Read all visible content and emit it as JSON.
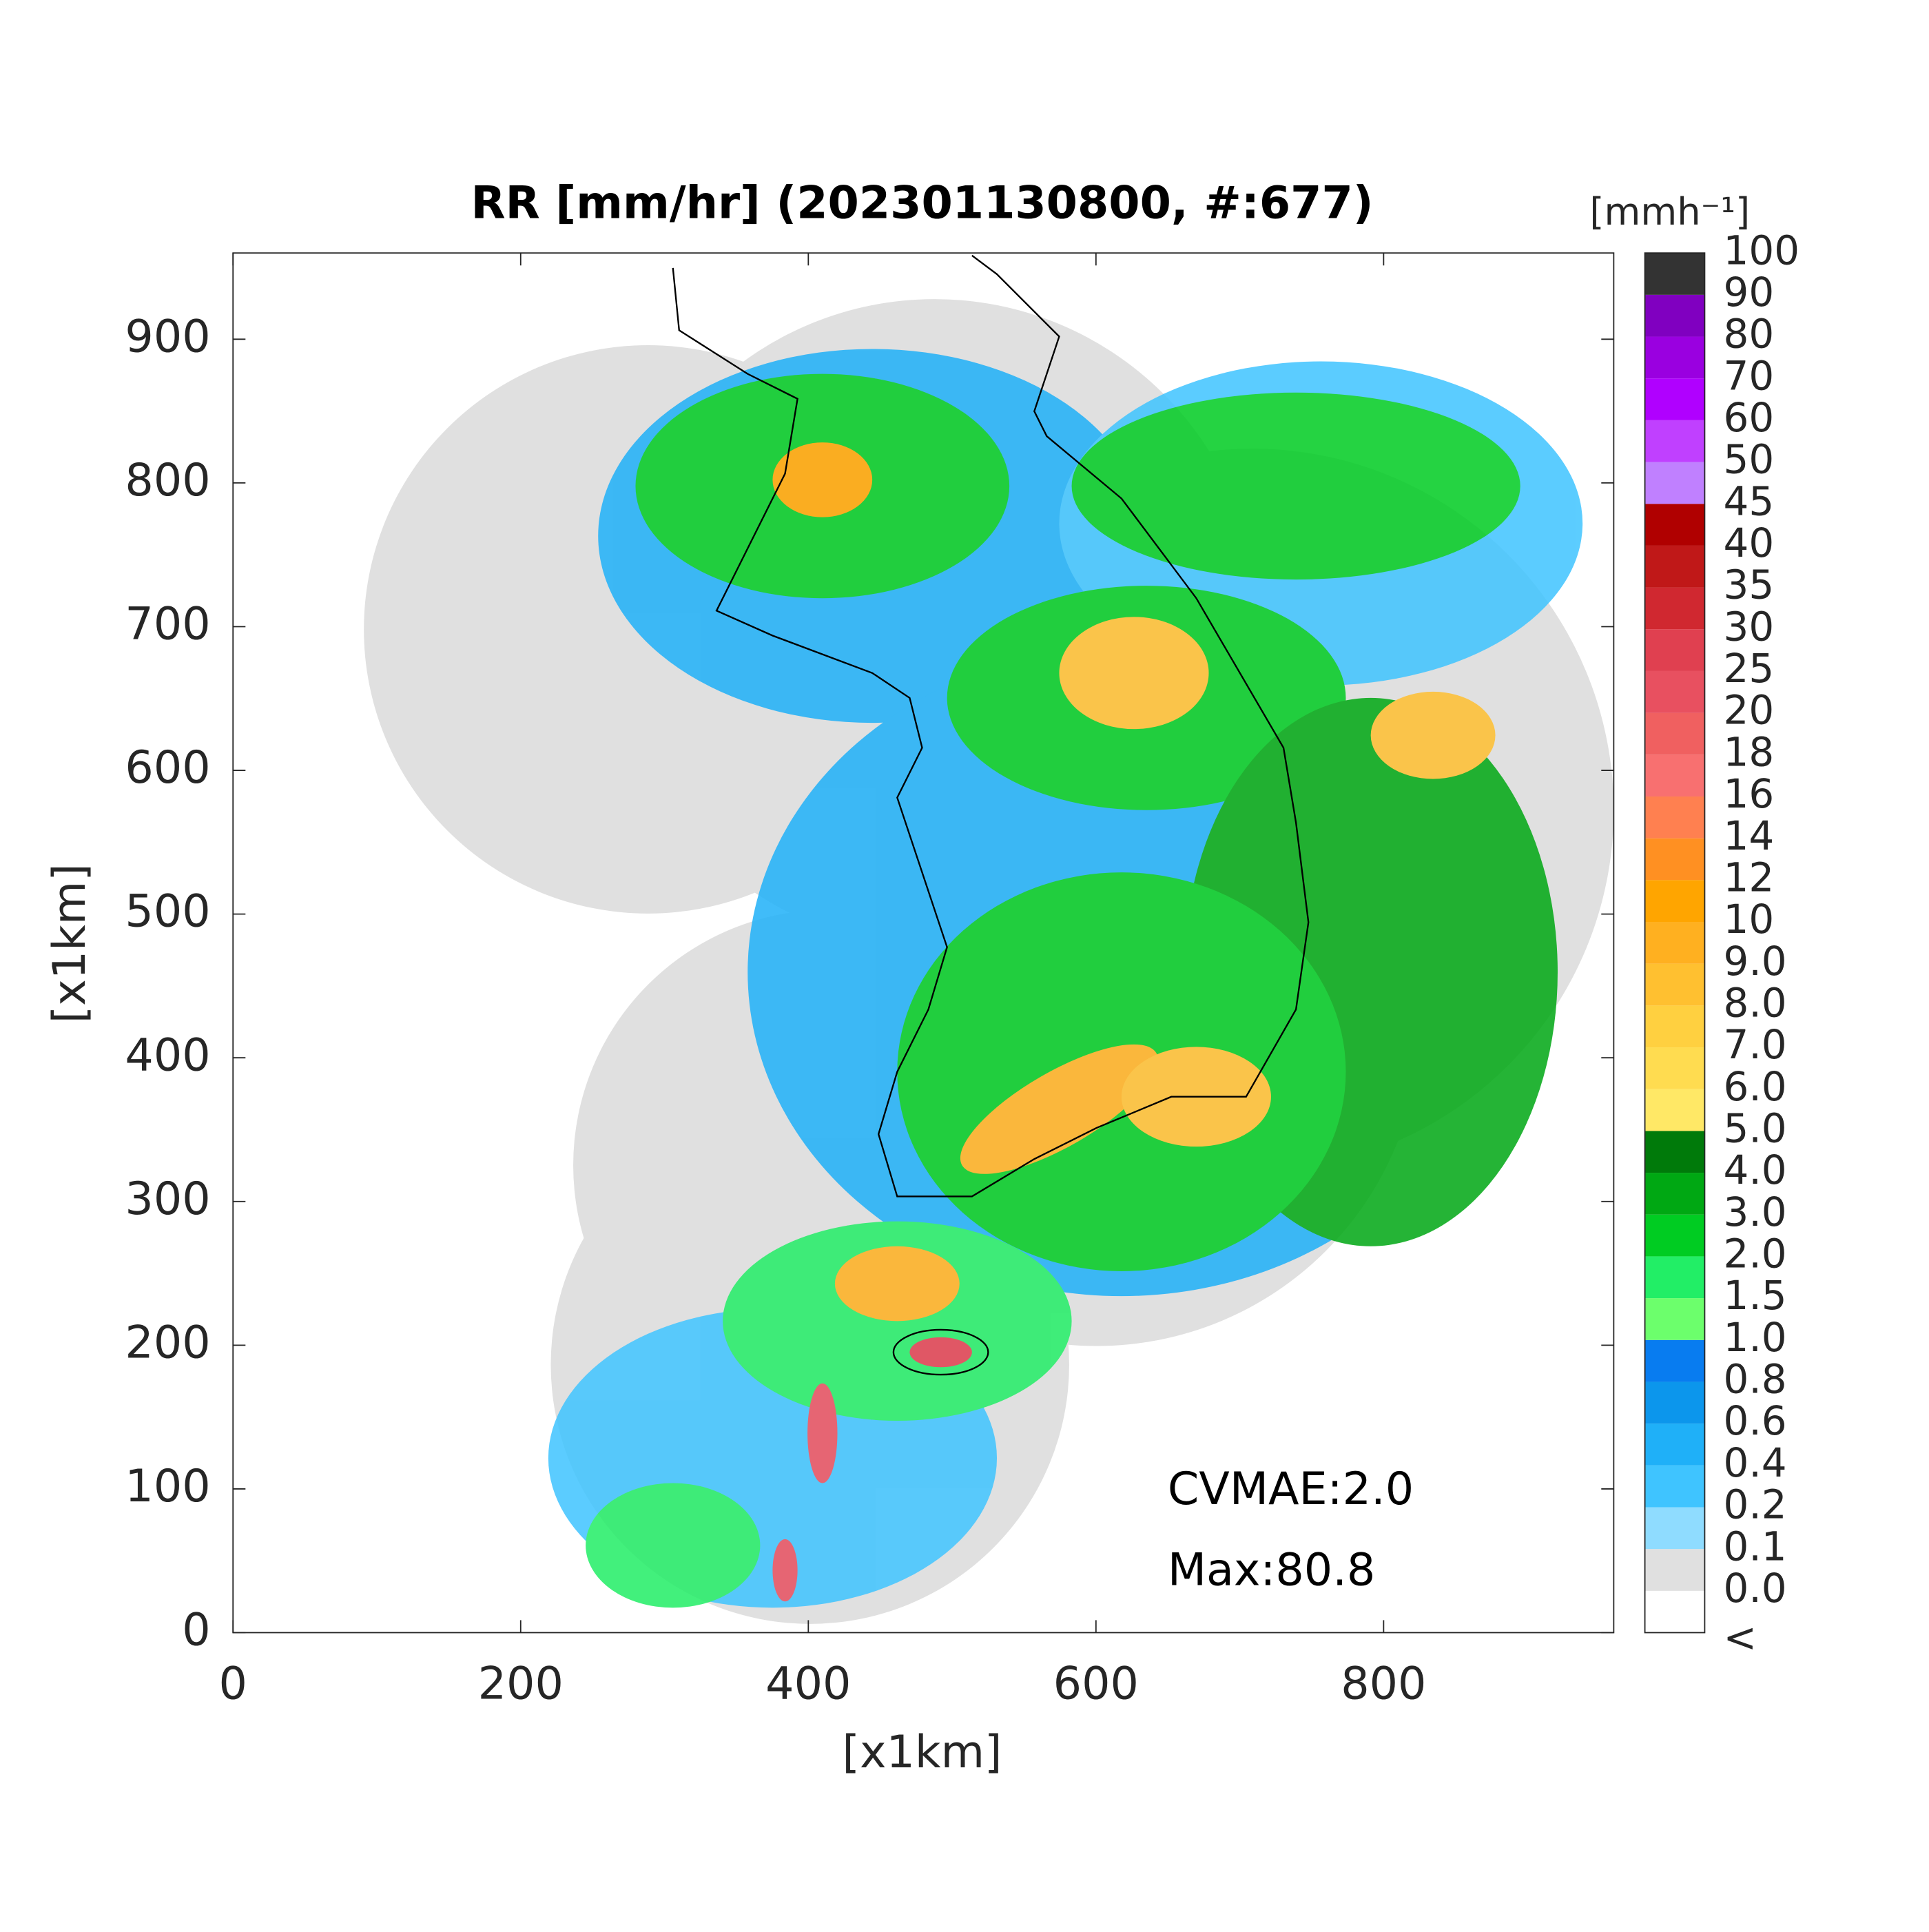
{
  "chart_data": {
    "type": "radar-map",
    "title": "RR [mm/hr] (202301130800, #:677)",
    "xlabel": "[x1km]",
    "ylabel": "[x1km]",
    "xlim": [
      0,
      960
    ],
    "ylim": [
      0,
      960
    ],
    "xticks": [
      0,
      200,
      400,
      600,
      800
    ],
    "yticks": [
      0,
      100,
      200,
      300,
      400,
      500,
      600,
      700,
      800,
      900
    ],
    "annotations": [
      "CVMAE:2.0",
      "Max:80.8"
    ],
    "colorbar": {
      "label": "[mmh⁻¹]",
      "levels": [
        "<",
        "0.0",
        "0.1",
        "0.2",
        "0.4",
        "0.6",
        "0.8",
        "1.0",
        "1.5",
        "2.0",
        "3.0",
        "4.0",
        "5.0",
        "6.0",
        "7.0",
        "8.0",
        "9.0",
        "10",
        "12",
        "14",
        "16",
        "18",
        "20",
        "25",
        "30",
        "35",
        "40",
        "45",
        "50",
        "60",
        "70",
        "80",
        "90",
        "100"
      ],
      "colors": [
        "#ffffff",
        "#e0e0e0",
        "#8fdcff",
        "#3fc4ff",
        "#1fb0f8",
        "#0c96ec",
        "#087cf0",
        "#6cff6c",
        "#22ee66",
        "#00cc22",
        "#00a813",
        "#007a0a",
        "#ffe866",
        "#ffdc50",
        "#ffd040",
        "#ffc030",
        "#ffb020",
        "#ffa500",
        "#ff9022",
        "#ff8050",
        "#f87070",
        "#f06060",
        "#e85060",
        "#e04050",
        "#d02830",
        "#c01818",
        "#b00000",
        "#c080ff",
        "#c040ff",
        "#b000ff",
        "#9a00e0",
        "#8000c0",
        "#333333"
      ]
    }
  }
}
